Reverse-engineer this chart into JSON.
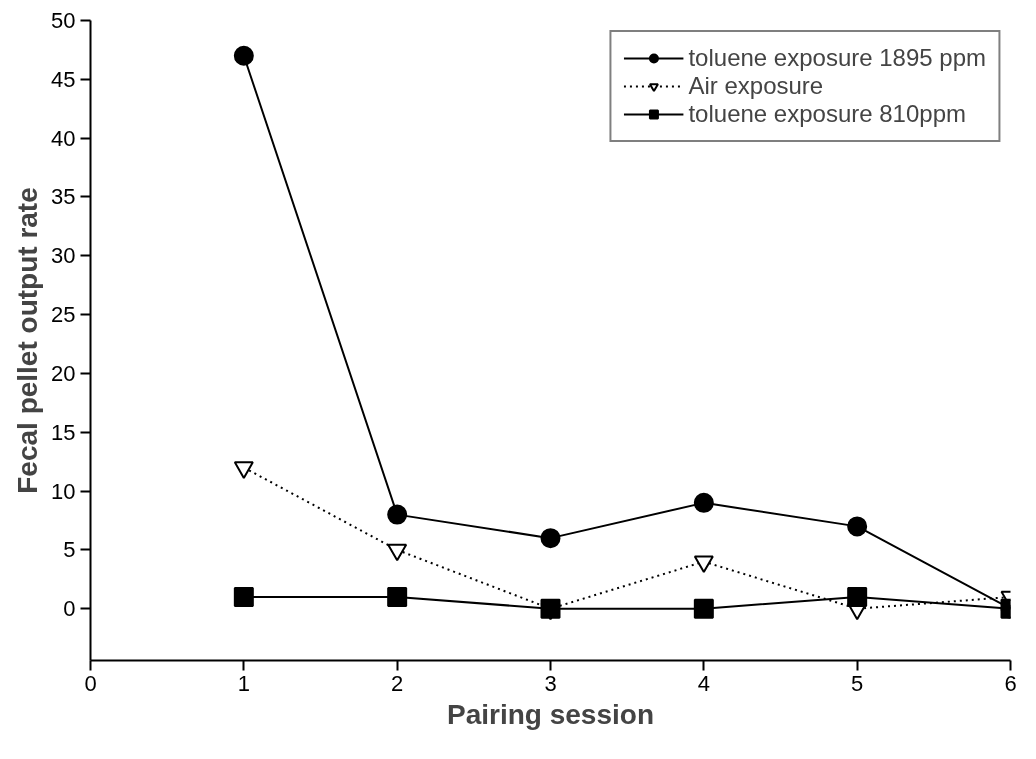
{
  "chart_data": {
    "type": "line",
    "xlabel": "Pairing session",
    "ylabel": "Fecal pellet output rate",
    "x": [
      1,
      2,
      3,
      4,
      5,
      6
    ],
    "xlim": [
      0,
      6
    ],
    "xticks": [
      0,
      1,
      2,
      3,
      4,
      5,
      6
    ],
    "ylim": [
      -4.4,
      50
    ],
    "yticks": [
      0,
      5,
      10,
      15,
      20,
      25,
      30,
      35,
      40,
      45,
      50
    ],
    "grid": false,
    "legend": "top right",
    "series": [
      {
        "name": "toluene exposure 1895 ppm",
        "color": "#000000",
        "marker": "circle",
        "line_style": "solid",
        "values": [
          47,
          8,
          6,
          9,
          7,
          0
        ]
      },
      {
        "name": "Air exposure",
        "color": "#000000",
        "marker": "triangle",
        "line_style": "dotted",
        "values": [
          12,
          5,
          0,
          4,
          0,
          1
        ]
      },
      {
        "name": "toluene exposure 810ppm",
        "color": "#000000",
        "marker": "square",
        "line_style": "solid",
        "values": [
          1,
          1,
          0,
          0,
          1,
          0
        ]
      }
    ]
  }
}
